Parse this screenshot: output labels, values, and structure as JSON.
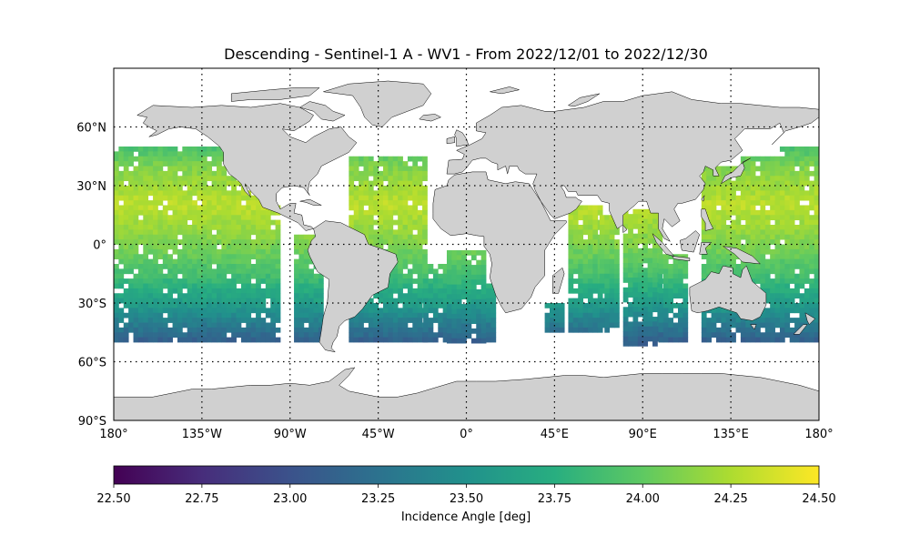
{
  "title": "Descending - Sentinel-1 A - WV1 - From 2022/12/01 to 2022/12/30",
  "map": {
    "projection": "PlateCarree",
    "lon_range": [
      -180,
      180
    ],
    "lat_range": [
      -90,
      90
    ],
    "land_color": "#d0d0d0",
    "coastline_color": "#000000",
    "gridlines": "dotted",
    "x_ticks": [
      {
        "lon": -180,
        "label": "180°"
      },
      {
        "lon": -135,
        "label": "135°W"
      },
      {
        "lon": -90,
        "label": "90°W"
      },
      {
        "lon": -45,
        "label": "45°W"
      },
      {
        "lon": 0,
        "label": "0°"
      },
      {
        "lon": 45,
        "label": "45°E"
      },
      {
        "lon": 90,
        "label": "90°E"
      },
      {
        "lon": 135,
        "label": "135°E"
      },
      {
        "lon": 180,
        "label": "180°"
      }
    ],
    "y_ticks": [
      {
        "lat": 60,
        "label": "60°N"
      },
      {
        "lat": 30,
        "label": "30°N"
      },
      {
        "lat": 0,
        "label": "0°"
      },
      {
        "lat": -30,
        "label": "30°S"
      },
      {
        "lat": -60,
        "label": "60°S"
      },
      {
        "lat": -90,
        "label": "90°S"
      }
    ]
  },
  "colorbar": {
    "label": "Incidence Angle [deg]",
    "colormap": "viridis",
    "vmin": 22.5,
    "vmax": 24.5,
    "ticks": [
      "22.50",
      "22.75",
      "23.00",
      "23.25",
      "23.50",
      "23.75",
      "24.00",
      "24.25",
      "24.50"
    ]
  },
  "chart_data": {
    "type": "heatmap",
    "title": "Descending - Sentinel-1 A - WV1 - From 2022/12/01 to 2022/12/30",
    "value_label": "Incidence Angle [deg]",
    "value_range": [
      22.5,
      24.5
    ],
    "lat_coverage": [
      -50,
      50
    ],
    "swaths": [
      {
        "lon": [
          -180,
          -115
        ],
        "lat": [
          -50,
          50
        ]
      },
      {
        "lon": [
          -115,
          -105
        ],
        "lat": [
          -50,
          35
        ]
      },
      {
        "lon": [
          -105,
          -95
        ],
        "lat": [
          -50,
          20
        ]
      },
      {
        "lon": [
          -88,
          -73
        ],
        "lat": [
          -50,
          5
        ]
      },
      {
        "lon": [
          -60,
          -22
        ],
        "lat": [
          -50,
          45
        ]
      },
      {
        "lon": [
          -22,
          -10
        ],
        "lat": [
          -50,
          -10
        ]
      },
      {
        "lon": [
          -10,
          10
        ],
        "lat": [
          -50,
          -3
        ]
      },
      {
        "lon": [
          10,
          13
        ],
        "lat": [
          -50,
          -20
        ]
      },
      {
        "lon": [
          40,
          48
        ],
        "lat": [
          -45,
          -30
        ]
      },
      {
        "lon": [
          52,
          68
        ],
        "lat": [
          -45,
          20
        ]
      },
      {
        "lon": [
          68,
          78
        ],
        "lat": [
          -45,
          15
        ]
      },
      {
        "lon": [
          80,
          98
        ],
        "lat": [
          -50,
          18
        ]
      },
      {
        "lon": [
          98,
          112
        ],
        "lat": [
          -50,
          -5
        ]
      },
      {
        "lon": [
          120,
          140
        ],
        "lat": [
          -50,
          40
        ]
      },
      {
        "lon": [
          140,
          160
        ],
        "lat": [
          -50,
          45
        ]
      },
      {
        "lon": [
          160,
          180
        ],
        "lat": [
          -50,
          50
        ]
      }
    ],
    "value_by_latitude": [
      {
        "lat": 50,
        "value": 23.9
      },
      {
        "lat": 40,
        "value": 24.1
      },
      {
        "lat": 20,
        "value": 24.3
      },
      {
        "lat": 0,
        "value": 24.1
      },
      {
        "lat": -15,
        "value": 23.9
      },
      {
        "lat": -30,
        "value": 23.6
      },
      {
        "lat": -40,
        "value": 23.35
      },
      {
        "lat": -50,
        "value": 23.1
      }
    ]
  }
}
